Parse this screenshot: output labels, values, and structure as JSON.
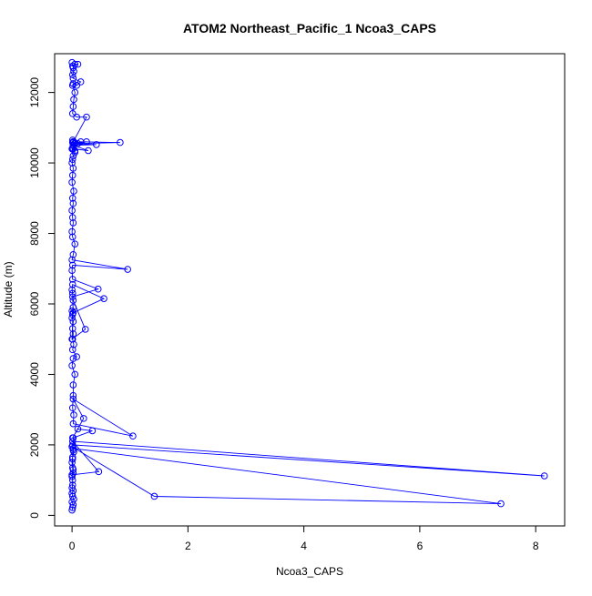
{
  "chart_data": {
    "type": "line",
    "title": "ATOM2 Northeast_Pacific_1 Ncoa3_CAPS",
    "xlabel": "Ncoa3_CAPS",
    "ylabel": "Altitude (m)",
    "xlim": [
      -0.3,
      8.5
    ],
    "ylim": [
      -300,
      13100
    ],
    "x_ticks": [
      0,
      2,
      4,
      6,
      8
    ],
    "y_ticks": [
      0,
      2000,
      4000,
      6000,
      8000,
      10000,
      12000
    ],
    "series_color": "#0000ff",
    "markers": "open-circle",
    "grid": false,
    "legend": "none",
    "series": [
      {
        "x": [
          0,
          0.01,
          0.02,
          0,
          0.03,
          0.01,
          0,
          0.02,
          0,
          0.01,
          0.01,
          0,
          0.02,
          0.01,
          0,
          0.01,
          0.03,
          0.02,
          0,
          1.42,
          7.4,
          0.02,
          0.01,
          8.15,
          0.01,
          0.46,
          0,
          0.02,
          0.01,
          0.02,
          0.35,
          0.1,
          0.01,
          0.2,
          0.02,
          1.05,
          0.02,
          0.03,
          0.01,
          0.02,
          0.02,
          0.05,
          0,
          0.02,
          0.08,
          0.01,
          0.03,
          0.01,
          0.02,
          0.01,
          0.02,
          0,
          0.01,
          0,
          0.02,
          0,
          0.23,
          0.02,
          0.01,
          0,
          0.01,
          0.55,
          0.02,
          0.01,
          0.45,
          0.01,
          0,
          0.01,
          0.96,
          0,
          0.02,
          0.05,
          0.01,
          0,
          0.02,
          0.01,
          0,
          0.02,
          0.01,
          0.03,
          0,
          0.01,
          0.02,
          0,
          0.01,
          0.02,
          0.05,
          0,
          0.02,
          0.04,
          0.01,
          0.02,
          0.01,
          0.03,
          0.02,
          0.28,
          0.02,
          0.42,
          0.05,
          0.83,
          0.15,
          0.1,
          0.25,
          0.02,
          0.05,
          0.01,
          0.02,
          0.25,
          0.08,
          0.01,
          0.02,
          0.03,
          0.05,
          0.01,
          0.02,
          0.08,
          0.15,
          0.02,
          0.01,
          0.03,
          0.02,
          0.05,
          0.1,
          0.01,
          0
        ],
        "y": [
          150,
          220,
          300,
          380,
          460,
          540,
          620,
          700,
          780,
          860,
          1000,
          1100,
          1200,
          1350,
          1500,
          1650,
          1800,
          1850,
          1950,
          540,
          330,
          1900,
          2000,
          1120,
          2100,
          1240,
          1150,
          1300,
          1600,
          2200,
          2400,
          2450,
          2200,
          2750,
          3300,
          2250,
          2600,
          2850,
          3050,
          3400,
          3700,
          4000,
          4250,
          4450,
          4500,
          4700,
          4850,
          5000,
          5150,
          5300,
          5500,
          5600,
          5700,
          5800,
          5900,
          5000,
          5280,
          6100,
          6300,
          6400,
          6550,
          6150,
          5750,
          6200,
          6420,
          6700,
          6950,
          7100,
          6980,
          7250,
          7400,
          7700,
          7900,
          8050,
          8300,
          8450,
          8650,
          8850,
          9000,
          9200,
          9450,
          9650,
          9850,
          10000,
          10100,
          10200,
          10300,
          10400,
          10500,
          10550,
          10580,
          10600,
          10650,
          10600,
          10400,
          10350,
          10500,
          10520,
          10550,
          10580,
          10600,
          10550,
          10600,
          10580,
          10350,
          10400,
          10600,
          11300,
          11300,
          11400,
          11600,
          11800,
          12000,
          12200,
          12250,
          12200,
          12300,
          12400,
          12500,
          12600,
          12700,
          12800,
          12800,
          12750,
          12850
        ]
      }
    ]
  }
}
